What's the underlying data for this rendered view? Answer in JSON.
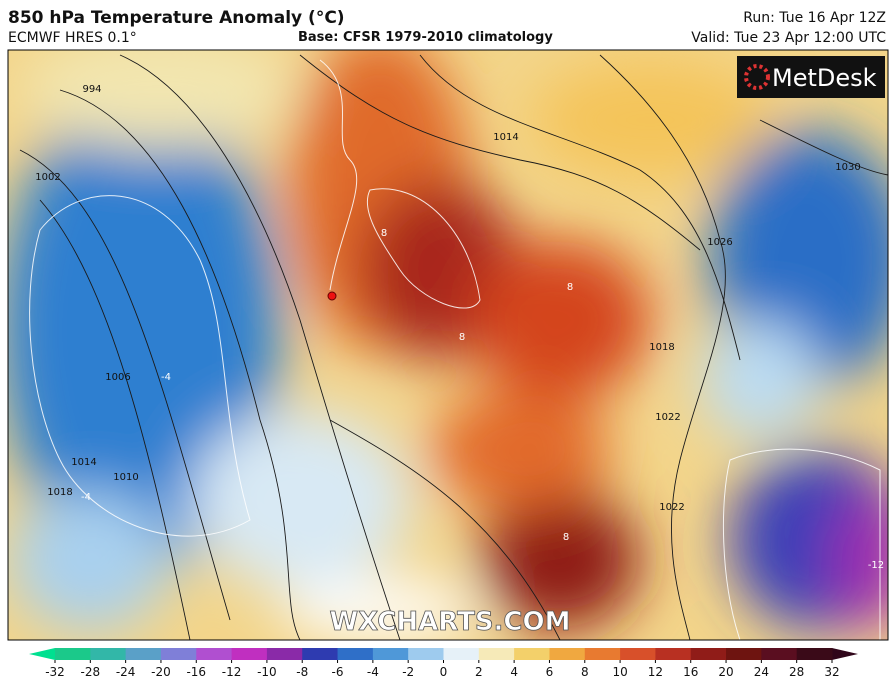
{
  "header": {
    "title": "850 hPa Temperature Anomaly (°C)",
    "model": "ECMWF HRES 0.1°",
    "base": "Base: CFSR 1979-2010 climatology",
    "run": "Run: Tue 16 Apr 12Z",
    "valid": "Valid: Tue 23 Apr 12:00 UTC"
  },
  "logo": "MetDesk",
  "watermark": "WXCHARTS.COM",
  "contour_labels": [
    "994",
    "1002",
    "1006",
    "1010",
    "1014",
    "1018",
    "1014",
    "1030",
    "1026",
    "1018",
    "1022",
    "1022",
    "8",
    "8",
    "8",
    "8",
    "-4",
    "-4",
    "-12"
  ],
  "colorbar": {
    "ticks": [
      -32,
      -28,
      -24,
      -20,
      -16,
      -12,
      -10,
      -8,
      -6,
      -4,
      -2,
      0,
      2,
      4,
      6,
      8,
      10,
      12,
      16,
      20,
      24,
      28,
      32
    ]
  }
}
